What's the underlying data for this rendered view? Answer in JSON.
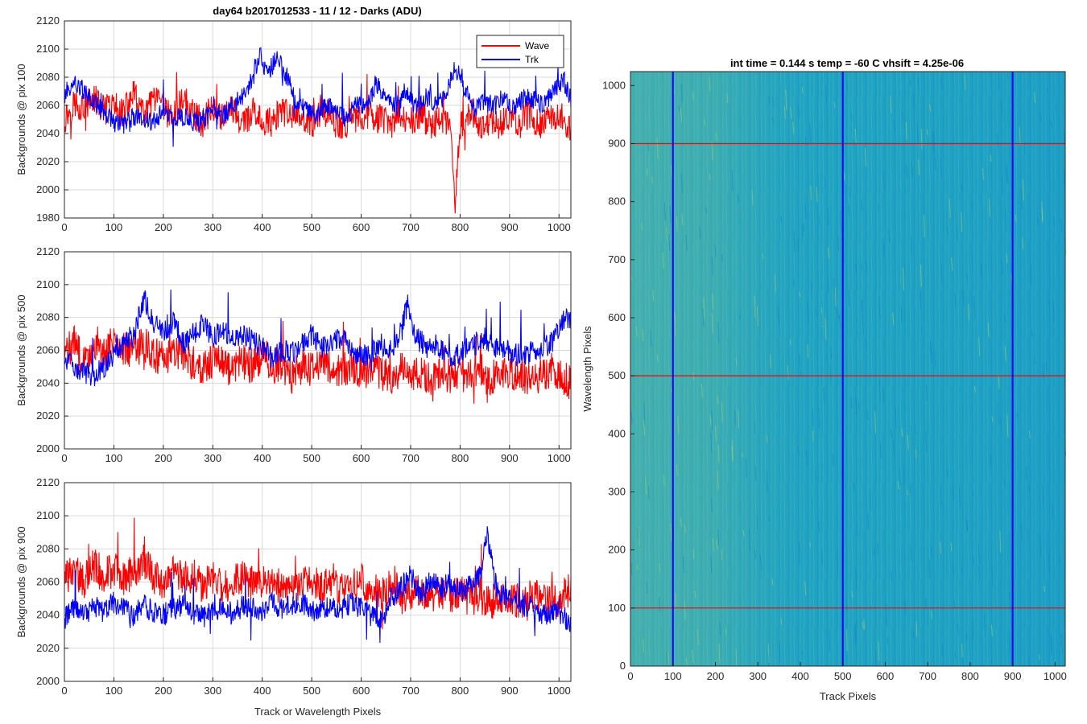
{
  "figure": {
    "title_main": "day64 b2017012533 - 11 / 12 - Darks (ADU)",
    "title_image": "int time = 0.144 s   temp = -60 C   vhsift = 4.25e-06"
  },
  "colors": {
    "wave": "#ff0000",
    "trk": "#0000ff",
    "grid": "#d9d9d9",
    "axis": "#262626",
    "image_base": "#1ea3c4"
  },
  "chart_data": [
    {
      "type": "line",
      "ylabel": "Backgrounds @ pix 100",
      "xlabel": "",
      "xlim": [
        0,
        1024
      ],
      "ylim": [
        1980,
        2120
      ],
      "xticks": [
        0,
        100,
        200,
        300,
        400,
        500,
        600,
        700,
        800,
        900,
        1000
      ],
      "yticks": [
        1980,
        2000,
        2020,
        2040,
        2060,
        2080,
        2100,
        2120
      ],
      "grid": true,
      "legend": {
        "placement": "top-right",
        "entries": [
          "Wave",
          "Trk"
        ]
      },
      "series": [
        {
          "name": "Wave",
          "color": "#ff0000",
          "x": [
            0,
            20,
            40,
            60,
            80,
            100,
            120,
            140,
            160,
            180,
            200,
            220,
            240,
            260,
            280,
            300,
            320,
            340,
            360,
            380,
            400,
            420,
            440,
            460,
            480,
            500,
            520,
            540,
            560,
            580,
            600,
            620,
            640,
            660,
            680,
            700,
            720,
            740,
            760,
            780,
            790,
            800,
            820,
            840,
            860,
            880,
            900,
            920,
            940,
            960,
            980,
            1000,
            1024
          ],
          "y": [
            2050,
            2062,
            2058,
            2065,
            2056,
            2060,
            2055,
            2068,
            2052,
            2064,
            2058,
            2050,
            2066,
            2054,
            2048,
            2060,
            2052,
            2058,
            2046,
            2055,
            2050,
            2048,
            2056,
            2050,
            2054,
            2046,
            2058,
            2050,
            2044,
            2052,
            2048,
            2054,
            2050,
            2046,
            2052,
            2048,
            2054,
            2046,
            2050,
            2044,
            1990,
            2046,
            2052,
            2044,
            2050,
            2046,
            2052,
            2048,
            2054,
            2046,
            2050,
            2055,
            2040
          ]
        },
        {
          "name": "Trk",
          "color": "#0000ff",
          "x": [
            0,
            20,
            40,
            60,
            80,
            100,
            120,
            140,
            160,
            180,
            200,
            220,
            240,
            260,
            280,
            300,
            320,
            340,
            360,
            380,
            395,
            410,
            430,
            450,
            470,
            490,
            510,
            530,
            550,
            570,
            590,
            610,
            630,
            650,
            670,
            690,
            710,
            730,
            750,
            770,
            790,
            810,
            830,
            850,
            870,
            890,
            910,
            930,
            950,
            970,
            990,
            1010,
            1024
          ],
          "y": [
            2068,
            2076,
            2070,
            2062,
            2055,
            2048,
            2046,
            2052,
            2050,
            2048,
            2056,
            2050,
            2052,
            2048,
            2050,
            2056,
            2052,
            2060,
            2066,
            2078,
            2098,
            2082,
            2094,
            2080,
            2062,
            2056,
            2052,
            2060,
            2054,
            2050,
            2062,
            2058,
            2076,
            2064,
            2058,
            2072,
            2058,
            2066,
            2062,
            2064,
            2088,
            2070,
            2058,
            2062,
            2060,
            2066,
            2058,
            2066,
            2064,
            2060,
            2072,
            2078,
            2064
          ]
        }
      ]
    },
    {
      "type": "line",
      "ylabel": "Backgrounds @ pix 500",
      "xlabel": "",
      "xlim": [
        0,
        1024
      ],
      "ylim": [
        2000,
        2120
      ],
      "xticks": [
        0,
        100,
        200,
        300,
        400,
        500,
        600,
        700,
        800,
        900,
        1000
      ],
      "yticks": [
        2000,
        2020,
        2040,
        2060,
        2080,
        2100,
        2120
      ],
      "grid": true,
      "series": [
        {
          "name": "Wave",
          "color": "#ff0000",
          "x": [
            0,
            20,
            40,
            60,
            80,
            100,
            120,
            140,
            160,
            180,
            200,
            220,
            240,
            260,
            280,
            300,
            320,
            340,
            360,
            380,
            400,
            420,
            440,
            460,
            480,
            500,
            520,
            540,
            560,
            580,
            600,
            620,
            640,
            660,
            680,
            700,
            720,
            740,
            760,
            780,
            800,
            820,
            840,
            860,
            880,
            900,
            920,
            940,
            960,
            980,
            1000,
            1024
          ],
          "y": [
            2058,
            2064,
            2052,
            2062,
            2056,
            2066,
            2062,
            2060,
            2064,
            2058,
            2054,
            2060,
            2058,
            2052,
            2050,
            2054,
            2052,
            2046,
            2054,
            2050,
            2058,
            2048,
            2052,
            2044,
            2050,
            2048,
            2054,
            2050,
            2046,
            2052,
            2046,
            2050,
            2046,
            2044,
            2048,
            2044,
            2046,
            2042,
            2048,
            2044,
            2046,
            2044,
            2048,
            2042,
            2046,
            2044,
            2046,
            2042,
            2044,
            2048,
            2046,
            2040
          ]
        },
        {
          "name": "Trk",
          "color": "#0000ff",
          "x": [
            0,
            20,
            40,
            60,
            80,
            100,
            120,
            140,
            160,
            180,
            200,
            220,
            240,
            260,
            280,
            300,
            320,
            340,
            360,
            380,
            400,
            420,
            440,
            460,
            480,
            500,
            520,
            540,
            560,
            580,
            600,
            620,
            640,
            660,
            680,
            695,
            710,
            730,
            750,
            770,
            790,
            810,
            830,
            850,
            870,
            890,
            910,
            930,
            950,
            970,
            990,
            1010,
            1024
          ],
          "y": [
            2056,
            2050,
            2046,
            2044,
            2050,
            2056,
            2064,
            2070,
            2092,
            2076,
            2070,
            2078,
            2064,
            2070,
            2076,
            2068,
            2072,
            2066,
            2070,
            2066,
            2062,
            2056,
            2060,
            2058,
            2064,
            2070,
            2062,
            2066,
            2068,
            2060,
            2056,
            2058,
            2064,
            2060,
            2072,
            2090,
            2068,
            2062,
            2064,
            2058,
            2056,
            2060,
            2064,
            2068,
            2062,
            2060,
            2058,
            2056,
            2060,
            2062,
            2066,
            2080,
            2076
          ]
        }
      ]
    },
    {
      "type": "line",
      "ylabel": "Backgrounds @ pix 900",
      "xlabel": "Track or Wavelength Pixels",
      "xlim": [
        0,
        1024
      ],
      "ylim": [
        2000,
        2120
      ],
      "xticks": [
        0,
        100,
        200,
        300,
        400,
        500,
        600,
        700,
        800,
        900,
        1000
      ],
      "yticks": [
        2000,
        2020,
        2040,
        2060,
        2080,
        2100,
        2120
      ],
      "grid": true,
      "series": [
        {
          "name": "Wave",
          "color": "#ff0000",
          "x": [
            0,
            20,
            40,
            60,
            80,
            100,
            120,
            140,
            160,
            180,
            200,
            220,
            240,
            260,
            280,
            300,
            320,
            340,
            360,
            380,
            400,
            420,
            440,
            460,
            480,
            500,
            520,
            540,
            560,
            580,
            600,
            620,
            640,
            660,
            680,
            700,
            720,
            740,
            760,
            780,
            800,
            820,
            840,
            860,
            880,
            900,
            920,
            940,
            960,
            980,
            1000,
            1024
          ],
          "y": [
            2062,
            2066,
            2060,
            2070,
            2064,
            2068,
            2062,
            2066,
            2072,
            2064,
            2060,
            2066,
            2062,
            2064,
            2058,
            2062,
            2056,
            2060,
            2064,
            2060,
            2058,
            2062,
            2056,
            2060,
            2058,
            2062,
            2056,
            2060,
            2054,
            2058,
            2060,
            2056,
            2052,
            2058,
            2054,
            2052,
            2056,
            2050,
            2054,
            2052,
            2054,
            2050,
            2052,
            2048,
            2050,
            2052,
            2048,
            2050,
            2052,
            2048,
            2050,
            2056
          ]
        },
        {
          "name": "Trk",
          "color": "#0000ff",
          "x": [
            0,
            20,
            40,
            60,
            80,
            100,
            120,
            140,
            160,
            180,
            200,
            220,
            240,
            260,
            280,
            300,
            320,
            340,
            360,
            380,
            400,
            420,
            440,
            460,
            480,
            500,
            520,
            540,
            560,
            580,
            600,
            620,
            640,
            660,
            680,
            700,
            720,
            740,
            760,
            780,
            800,
            820,
            840,
            855,
            870,
            890,
            910,
            930,
            950,
            970,
            990,
            1010,
            1024
          ],
          "y": [
            2038,
            2044,
            2040,
            2046,
            2042,
            2048,
            2044,
            2040,
            2046,
            2042,
            2040,
            2044,
            2046,
            2040,
            2044,
            2042,
            2046,
            2040,
            2046,
            2044,
            2042,
            2048,
            2044,
            2046,
            2048,
            2042,
            2046,
            2044,
            2042,
            2048,
            2044,
            2040,
            2036,
            2050,
            2056,
            2064,
            2052,
            2062,
            2056,
            2060,
            2054,
            2058,
            2064,
            2090,
            2060,
            2050,
            2052,
            2046,
            2044,
            2040,
            2042,
            2038,
            2036
          ]
        }
      ]
    },
    {
      "type": "heatmap",
      "xlabel": "Track Pixels",
      "ylabel": "Wavelength Pixels",
      "xlim": [
        0,
        1024
      ],
      "ylim": [
        0,
        1024
      ],
      "xticks": [
        0,
        100,
        200,
        300,
        400,
        500,
        600,
        700,
        800,
        900,
        1000
      ],
      "yticks": [
        0,
        100,
        200,
        300,
        400,
        500,
        600,
        700,
        800,
        900,
        1000
      ],
      "markers": {
        "vertical_lines_x": [
          100,
          500,
          900
        ],
        "vertical_color": "#0000ff",
        "horizontal_lines_y": [
          100,
          500,
          900
        ],
        "horizontal_color": "#ff0000"
      }
    }
  ]
}
